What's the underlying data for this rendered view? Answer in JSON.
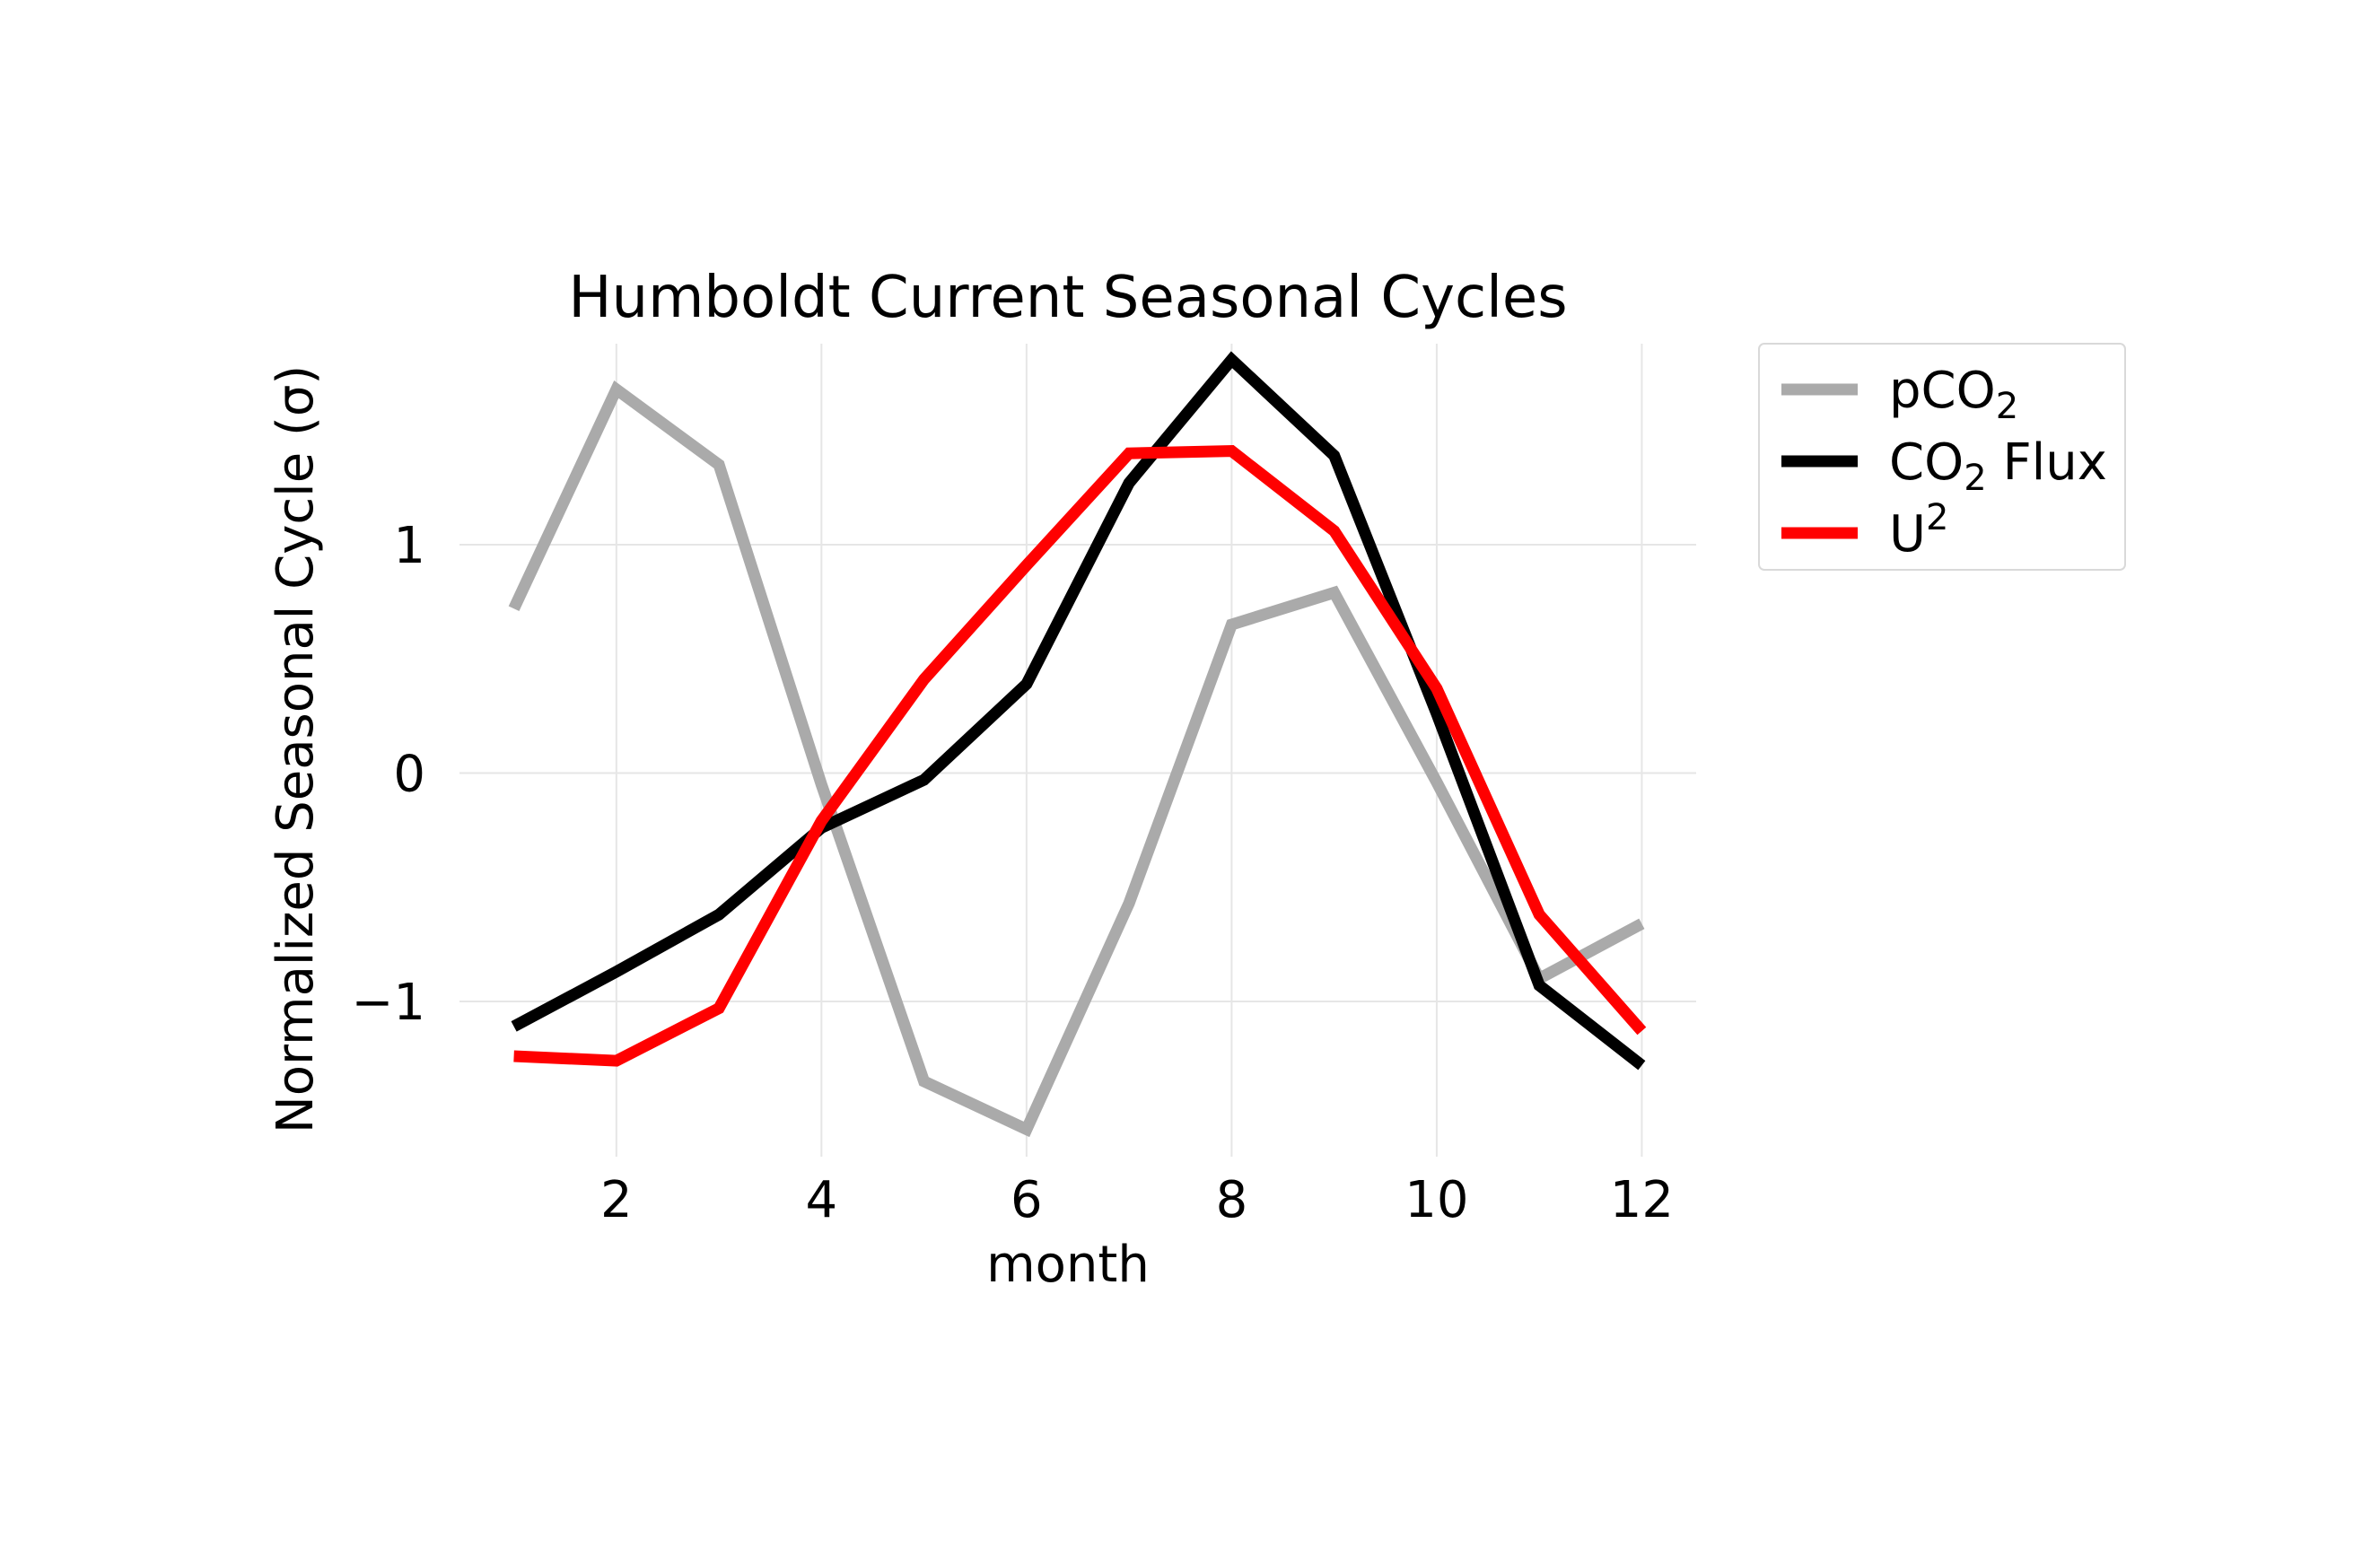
{
  "chart_data": {
    "type": "line",
    "title": "Humboldt Current Seasonal Cycles",
    "xlabel": "month",
    "ylabel": "Normalized Seasonal Cycle (σ)",
    "xlim": [
      0.47,
      12.53
    ],
    "ylim": [
      -1.68,
      1.88
    ],
    "xticks": [
      2,
      4,
      6,
      8,
      10,
      12
    ],
    "xtick_labels": [
      "2",
      "4",
      "6",
      "8",
      "10",
      "12"
    ],
    "yticks": [
      1,
      0,
      -1
    ],
    "ytick_labels": [
      "1",
      "0",
      "−1"
    ],
    "grid": true,
    "legend_position": "outside-right-top",
    "x": [
      1,
      2,
      3,
      4,
      5,
      6,
      7,
      8,
      9,
      10,
      11,
      12
    ],
    "series": [
      {
        "name": "pCO2",
        "name_main": "pCO",
        "name_sub": "2",
        "name_sup": "",
        "name_tail": "",
        "color": "#aaaaaa",
        "values": [
          0.72,
          1.68,
          1.35,
          -0.05,
          -1.35,
          -1.56,
          -0.57,
          0.65,
          0.79,
          -0.04,
          -0.9,
          -0.66
        ]
      },
      {
        "name": "CO2 Flux",
        "name_main": "CO",
        "name_sub": "2",
        "name_sup": "",
        "name_tail": " Flux",
        "color": "#000000",
        "values": [
          -1.11,
          -0.87,
          -0.62,
          -0.24,
          -0.03,
          0.39,
          1.27,
          1.81,
          1.39,
          0.26,
          -0.93,
          -1.28
        ]
      },
      {
        "name": "U2",
        "name_main": "U",
        "name_sub": "",
        "name_sup": "2",
        "name_tail": "",
        "color": "#ff0000",
        "values": [
          -1.24,
          -1.26,
          -1.03,
          -0.21,
          0.41,
          0.91,
          1.4,
          1.41,
          1.06,
          0.37,
          -0.62,
          -1.13
        ]
      }
    ]
  }
}
